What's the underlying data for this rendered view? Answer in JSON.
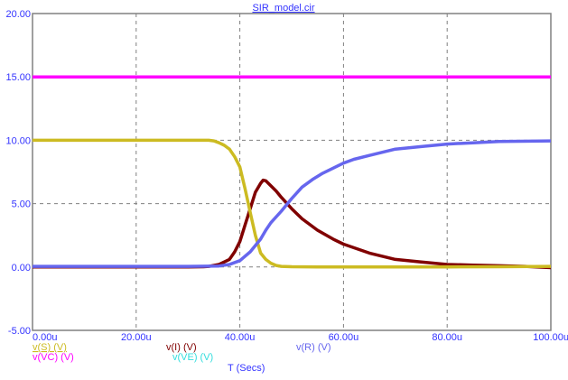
{
  "window": {
    "title": "SIR_model.cir"
  },
  "chart_data": {
    "type": "line",
    "title": "SIR_model.cir",
    "xlabel": "T (Secs)",
    "ylabel": "",
    "xlim": [
      0,
      100
    ],
    "ylim": [
      -5,
      20
    ],
    "x_unit": "u",
    "grid": true,
    "x_ticks": [
      "0.00u",
      "20.00u",
      "40.00u",
      "60.00u",
      "80.00u",
      "100.00u"
    ],
    "y_ticks": [
      "20.00",
      "15.00",
      "10.00",
      "5.00",
      "0.00",
      "-5.00"
    ],
    "legend_position": "bottom",
    "series": [
      {
        "name": "v(S) (V)",
        "color": "#ccbb22",
        "x": [
          0,
          10,
          20,
          30,
          34,
          35,
          36,
          37,
          38,
          39,
          40,
          41,
          42,
          43,
          44,
          45,
          46,
          47,
          48,
          50,
          55,
          60,
          70,
          80,
          90,
          100
        ],
        "values": [
          10,
          10,
          10,
          10,
          10,
          9.95,
          9.8,
          9.6,
          9.3,
          8.7,
          7.9,
          6.2,
          4.3,
          2.5,
          1.1,
          0.6,
          0.3,
          0.12,
          0.05,
          0.02,
          0.01,
          0.01,
          0.01,
          0.01,
          0.02,
          0.05
        ]
      },
      {
        "name": "v(I) (V)",
        "color": "#800000",
        "x": [
          0,
          10,
          20,
          30,
          33,
          34,
          36,
          38,
          39,
          40,
          41,
          42,
          43,
          44,
          44.5,
          45,
          46,
          47,
          48,
          50,
          52,
          55,
          58,
          60,
          65,
          70,
          75,
          80,
          85,
          90,
          95,
          100
        ],
        "values": [
          0,
          0,
          0,
          0,
          0.02,
          0.05,
          0.2,
          0.6,
          1.2,
          2.0,
          3.3,
          4.6,
          5.9,
          6.6,
          6.85,
          6.8,
          6.4,
          6.0,
          5.5,
          4.6,
          3.8,
          2.9,
          2.2,
          1.8,
          1.1,
          0.6,
          0.4,
          0.2,
          0.15,
          0.1,
          0.05,
          -0.05
        ]
      },
      {
        "name": "v(R) (V)",
        "color": "#6666ee",
        "x": [
          0,
          10,
          20,
          30,
          36,
          38,
          40,
          42,
          44,
          45,
          46,
          48,
          50,
          52,
          54,
          56,
          58,
          60,
          62,
          65,
          70,
          75,
          80,
          85,
          90,
          100
        ],
        "values": [
          0.05,
          0.05,
          0.05,
          0.05,
          0.08,
          0.2,
          0.5,
          1.2,
          2.2,
          2.9,
          3.5,
          4.4,
          5.4,
          6.3,
          6.9,
          7.4,
          7.8,
          8.2,
          8.5,
          8.8,
          9.3,
          9.5,
          9.7,
          9.8,
          9.9,
          9.95
        ]
      },
      {
        "name": "v(VC) (V)",
        "color": "#ff00ff",
        "x": [
          0,
          100
        ],
        "values": [
          15,
          15
        ]
      },
      {
        "name": "v(VE) (V)",
        "color": "#33dddd",
        "x": [],
        "values": []
      }
    ]
  },
  "legend": [
    {
      "label": "v(S) (V)",
      "color": "#ccbb22",
      "underline": true
    },
    {
      "label": "v(I) (V)",
      "color": "#800000"
    },
    {
      "label": "v(R) (V)",
      "color": "#6666ee"
    },
    {
      "label": "v(VC) (V)",
      "color": "#ff00ff"
    },
    {
      "label": "v(VE) (V)",
      "color": "#33dddd"
    }
  ],
  "axis": {
    "xlabel": "T (Secs)"
  },
  "colors": {
    "axis": "#808080",
    "grid": "#808080",
    "tick_text": "#3333ff"
  }
}
